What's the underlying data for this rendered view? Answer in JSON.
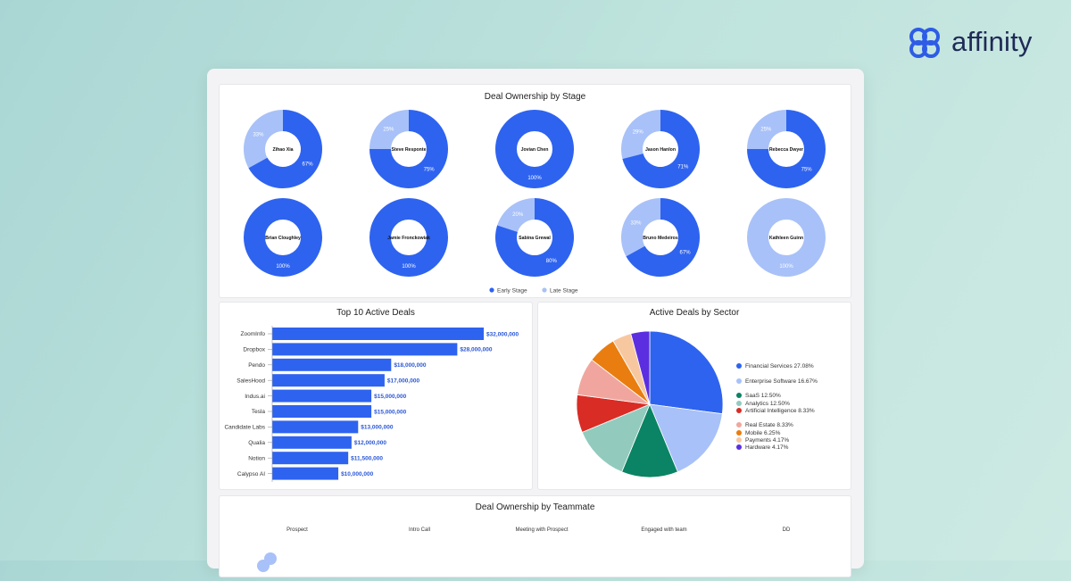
{
  "brand": {
    "name": "affinity",
    "logo_icon": "affinity-logo-icon",
    "color": "#2e5ce6"
  },
  "colors": {
    "early": "#2e63f0",
    "late": "#a8c1f8",
    "bar": "#2e63f0",
    "bar_label": "#2a57d6"
  },
  "chart_data": [
    {
      "type": "pie",
      "variant": "donut-grid",
      "title": "Deal Ownership by Stage",
      "series_names": [
        "Early Stage",
        "Late Stage"
      ],
      "legend": {
        "position": "bottom",
        "items": [
          "Early Stage",
          "Late Stage"
        ]
      },
      "owners": [
        {
          "name": "Zihao Xia",
          "early": 67,
          "late": 33,
          "early_label": "67%",
          "late_label": "33%"
        },
        {
          "name": "Steve Responte",
          "early": 75,
          "late": 25,
          "early_label": "75%",
          "late_label": "25%"
        },
        {
          "name": "Jovian Chen",
          "early": 100,
          "late": 0,
          "early_label": "100%",
          "late_label": ""
        },
        {
          "name": "Jason Hanlon",
          "early": 71,
          "late": 29,
          "early_label": "71%",
          "late_label": "29%"
        },
        {
          "name": "Rebecca Dwyer",
          "early": 75,
          "late": 25,
          "early_label": "75%",
          "late_label": "25%"
        },
        {
          "name": "Brian Cloughley",
          "early": 100,
          "late": 0,
          "early_label": "100%",
          "late_label": ""
        },
        {
          "name": "Jamie Fronckowiak",
          "early": 100,
          "late": 0,
          "early_label": "100%",
          "late_label": ""
        },
        {
          "name": "Sabina Grewal",
          "early": 80,
          "late": 20,
          "early_label": "80%",
          "late_label": "20%"
        },
        {
          "name": "Bruno Medeiros",
          "early": 67,
          "late": 33,
          "early_label": "67%",
          "late_label": "33%"
        },
        {
          "name": "Kathleen Guinn",
          "early": 0,
          "late": 100,
          "early_label": "",
          "late_label": "100%"
        }
      ]
    },
    {
      "type": "bar",
      "orientation": "horizontal",
      "title": "Top 10 Active Deals",
      "categories": [
        "ZoomInfo",
        "Dropbox",
        "Pendo",
        "SalesHood",
        "Indus.ai",
        "Tesla",
        "Candidate Labs",
        "Qualia",
        "Notion",
        "Calypso AI"
      ],
      "values": [
        32000000,
        28000000,
        18000000,
        17000000,
        15000000,
        15000000,
        13000000,
        12000000,
        11500000,
        10000000
      ],
      "value_labels": [
        "$32,000,000",
        "$28,000,000",
        "$18,000,000",
        "$17,000,000",
        "$15,000,000",
        "$15,000,000",
        "$13,000,000",
        "$12,000,000",
        "$11,500,000",
        "$10,000,000"
      ],
      "xlim": [
        0,
        32000000
      ]
    },
    {
      "type": "pie",
      "title": "Active Deals by Sector",
      "legend": {
        "position": "right"
      },
      "slices": [
        {
          "label": "Financial Services 27.08%",
          "value": 27.08,
          "color": "#2e63f0"
        },
        {
          "label": "Enterprise Software 16.67%",
          "value": 16.67,
          "color": "#a8c1f8"
        },
        {
          "label": "SaaS 12.50%",
          "value": 12.5,
          "color": "#0a8464"
        },
        {
          "label": "Analytics 12.50%",
          "value": 12.5,
          "color": "#92cbbe"
        },
        {
          "label": "Artificial Intelligence 8.33%",
          "value": 8.33,
          "color": "#d92c25"
        },
        {
          "label": "Real Estate 8.33%",
          "value": 8.33,
          "color": "#f0a69e"
        },
        {
          "label": "Mobile 6.25%",
          "value": 6.25,
          "color": "#ea7d0f"
        },
        {
          "label": "Payments 4.17%",
          "value": 4.17,
          "color": "#f7c8a0"
        },
        {
          "label": "Hardware 4.17%",
          "value": 4.17,
          "color": "#5b2fe0"
        }
      ]
    }
  ],
  "teammate_section": {
    "title": "Deal Ownership by Teammate",
    "stages": [
      "Prospect",
      "Intro Call",
      "Meeting with Prospect",
      "Engaged with team",
      "DD"
    ]
  }
}
